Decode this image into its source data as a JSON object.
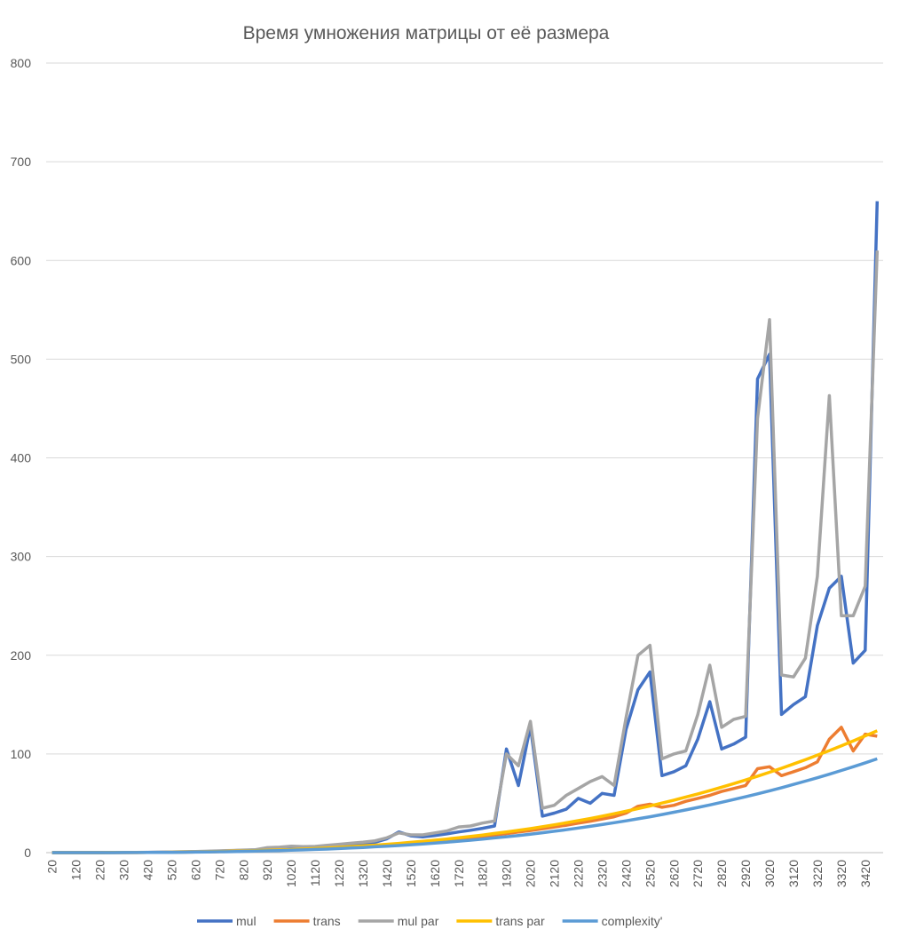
{
  "chart_data": {
    "type": "line",
    "title": "Время умножения матрицы от её размера",
    "categories": [
      "20",
      null,
      "120",
      null,
      "220",
      null,
      "320",
      null,
      "420",
      null,
      "520",
      null,
      "620",
      null,
      "720",
      null,
      "820",
      null,
      "920",
      null,
      "1020",
      null,
      "1120",
      null,
      "1220",
      null,
      "1320",
      null,
      "1420",
      null,
      "1520",
      null,
      "1620",
      null,
      "1720",
      null,
      "1820",
      null,
      "1920",
      null,
      "2020",
      null,
      "2120",
      null,
      "2220",
      null,
      "2320",
      null,
      "2420",
      null,
      "2520",
      null,
      "2620",
      null,
      "2720",
      null,
      "2820",
      null,
      "2920",
      null,
      "3020",
      null,
      "3120",
      null,
      "3220",
      null,
      "3320",
      null,
      "3420",
      null
    ],
    "ylim": [
      0,
      800
    ],
    "yticks": [
      0,
      100,
      200,
      300,
      400,
      500,
      600,
      700,
      800
    ],
    "grid": true,
    "legend": "bottom",
    "series": [
      {
        "name": "mul",
        "color": "#4472c4",
        "values": [
          0,
          0,
          0,
          0,
          0,
          0.1,
          0.1,
          0.2,
          0.3,
          0.4,
          0.6,
          0.8,
          1,
          1.2,
          1.5,
          1.9,
          2.3,
          2.7,
          3.2,
          3.7,
          4.3,
          5,
          5.7,
          6.6,
          7.4,
          8.4,
          9.4,
          10.5,
          14,
          21,
          17,
          16,
          17.4,
          19,
          21,
          22.7,
          24.7,
          27,
          105,
          68,
          128,
          37,
          40,
          44,
          55,
          50,
          60,
          58,
          125,
          165,
          183,
          78,
          82,
          88,
          115,
          153,
          105,
          110,
          117,
          480,
          505,
          140,
          150,
          158,
          230,
          268,
          280,
          192,
          205,
          660
        ]
      },
      {
        "name": "trans",
        "color": "#ed7d31",
        "values": [
          0,
          0,
          0,
          0,
          0,
          0.1,
          0.1,
          0.1,
          0.2,
          0.3,
          0.4,
          0.5,
          0.6,
          0.8,
          1,
          1.2,
          1.5,
          1.8,
          2.1,
          2.5,
          2.9,
          3.3,
          3.8,
          4.4,
          5,
          5.6,
          6.3,
          7,
          7.8,
          8.7,
          9.6,
          10.6,
          11.6,
          12.7,
          13.9,
          15.1,
          16.4,
          17.9,
          19.3,
          20.9,
          22.4,
          24.2,
          26,
          27.8,
          29.9,
          31.9,
          34.1,
          36.4,
          40,
          47,
          49,
          46,
          48,
          52,
          55,
          58,
          62,
          65,
          68,
          85,
          87,
          78,
          82,
          86,
          92,
          115,
          127,
          103,
          120,
          118
        ]
      },
      {
        "name": "mul par",
        "color": "#a5a5a5",
        "values": [
          0,
          0,
          0,
          0,
          0,
          0.1,
          0.2,
          0.3,
          0.4,
          0.5,
          0.7,
          0.9,
          1.1,
          1.4,
          1.8,
          2.2,
          2.6,
          3,
          5,
          5.5,
          6.5,
          6,
          6.3,
          7.5,
          8.5,
          9.5,
          10.5,
          12,
          15,
          20,
          18,
          18,
          20,
          22,
          26,
          27,
          30,
          32,
          100,
          88,
          133,
          45,
          48,
          58,
          65,
          72,
          77,
          68,
          137,
          200,
          210,
          95,
          100,
          103,
          140,
          190,
          127,
          135,
          138,
          440,
          540,
          180,
          178,
          197,
          280,
          463,
          240,
          240,
          270,
          610
        ]
      },
      {
        "name": "trans par",
        "color": "#ffc000",
        "values": [
          0,
          0,
          0,
          0,
          0,
          0.1,
          0.1,
          0.1,
          0.2,
          0.3,
          0.4,
          0.5,
          0.7,
          0.9,
          1.1,
          1.4,
          1.6,
          2,
          2.3,
          2.7,
          3.1,
          3.6,
          4.1,
          4.7,
          5.4,
          6.1,
          6.8,
          7.6,
          8.5,
          9.4,
          10.4,
          11.4,
          12.6,
          13.8,
          15.1,
          16.4,
          17.8,
          19.4,
          20.9,
          22.6,
          24.3,
          26.3,
          28.2,
          30.2,
          32.4,
          34.6,
          36.9,
          39.4,
          41.9,
          44.6,
          47.3,
          50.2,
          53.2,
          56.3,
          59.5,
          62.8,
          66.3,
          69.9,
          73.6,
          77.5,
          81.4,
          85.5,
          89.8,
          94.1,
          98.7,
          103.4,
          108.2,
          113.1,
          118.3,
          123.5
        ]
      },
      {
        "name": "complexity'",
        "color": "#5b9bd5",
        "values": [
          0,
          0,
          0,
          0,
          0,
          0,
          0.1,
          0.1,
          0.2,
          0.2,
          0.3,
          0.4,
          0.5,
          0.7,
          0.9,
          1,
          1.3,
          1.5,
          1.8,
          2.1,
          2.4,
          2.8,
          3.2,
          3.6,
          4.1,
          4.7,
          5.2,
          5.9,
          6.5,
          7.2,
          8,
          8.8,
          9.7,
          10.6,
          11.6,
          12.6,
          13.7,
          14.9,
          16.1,
          17.4,
          18.7,
          20.2,
          21.7,
          23.2,
          24.9,
          26.6,
          28.4,
          30.3,
          32.2,
          34.3,
          36.4,
          38.6,
          40.9,
          43.3,
          45.8,
          48.3,
          51,
          53.8,
          56.6,
          59.6,
          62.6,
          65.8,
          69.1,
          72.4,
          75.9,
          79.5,
          83.2,
          87,
          91,
          95
        ]
      }
    ]
  }
}
